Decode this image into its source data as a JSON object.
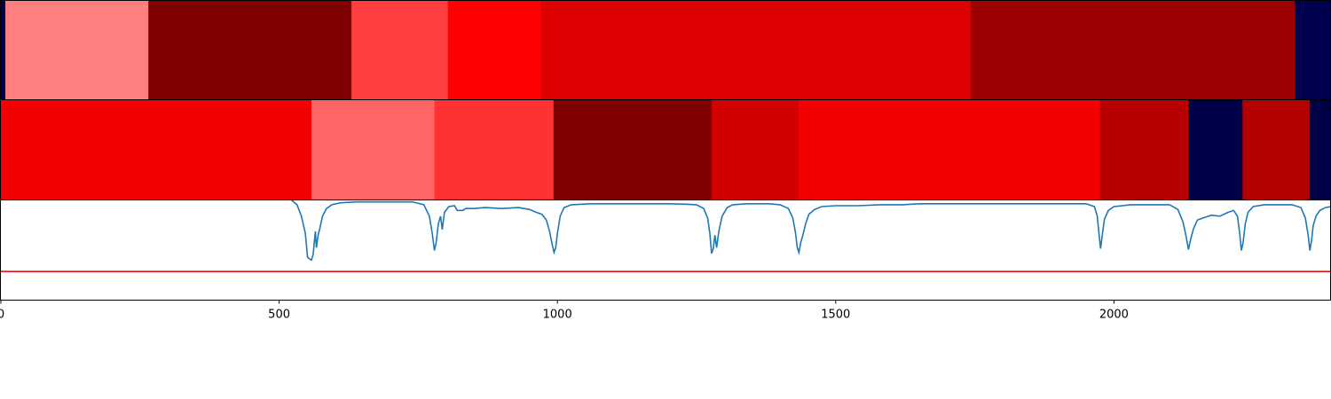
{
  "chart_data": [
    {
      "type": "heatmap",
      "xlim": [
        0,
        2390
      ],
      "segments": [
        {
          "start": 0,
          "end": 8,
          "color": "#000050"
        },
        {
          "start": 8,
          "end": 265,
          "color": "#ff7f7f"
        },
        {
          "start": 265,
          "end": 630,
          "color": "#7f0000"
        },
        {
          "start": 630,
          "end": 803,
          "color": "#ff3f3f"
        },
        {
          "start": 803,
          "end": 970,
          "color": "#ff0000"
        },
        {
          "start": 970,
          "end": 1743,
          "color": "#dc0000"
        },
        {
          "start": 1743,
          "end": 2325,
          "color": "#9c0000"
        },
        {
          "start": 2325,
          "end": 2390,
          "color": "#000050"
        }
      ]
    },
    {
      "type": "heatmap",
      "xlim": [
        0,
        2390
      ],
      "segments": [
        {
          "start": 0,
          "end": 558,
          "color": "#f50000"
        },
        {
          "start": 558,
          "end": 779,
          "color": "#ff6565"
        },
        {
          "start": 779,
          "end": 993,
          "color": "#ff3131"
        },
        {
          "start": 993,
          "end": 1277,
          "color": "#7f0000"
        },
        {
          "start": 1277,
          "end": 1433,
          "color": "#d30000"
        },
        {
          "start": 1433,
          "end": 1975,
          "color": "#f40000"
        },
        {
          "start": 1975,
          "end": 2134,
          "color": "#b80000"
        },
        {
          "start": 2134,
          "end": 2231,
          "color": "#000048"
        },
        {
          "start": 2231,
          "end": 2352,
          "color": "#b50000"
        },
        {
          "start": 2352,
          "end": 2390,
          "color": "#000048"
        }
      ]
    },
    {
      "type": "line",
      "xlim": [
        0,
        2390
      ],
      "ylim": [
        -1.0,
        0.05
      ],
      "ticks": [
        0,
        500,
        1000,
        1500,
        2000
      ],
      "threshold": -0.7,
      "line_color": "#1f77b4",
      "threshold_color": "#ee1111",
      "points": [
        [
          0,
          0.1
        ],
        [
          470,
          0.1
        ],
        [
          505,
          0.1
        ],
        [
          520,
          0.06
        ],
        [
          532,
          0.0
        ],
        [
          540,
          -0.12
        ],
        [
          547,
          -0.3
        ],
        [
          551,
          -0.55
        ],
        [
          555,
          -0.57
        ],
        [
          558,
          -0.58
        ],
        [
          561,
          -0.52
        ],
        [
          563,
          -0.41
        ],
        [
          565,
          -0.28
        ],
        [
          567,
          -0.45
        ],
        [
          570,
          -0.32
        ],
        [
          573,
          -0.25
        ],
        [
          578,
          -0.12
        ],
        [
          585,
          -0.04
        ],
        [
          595,
          0.0
        ],
        [
          610,
          0.02
        ],
        [
          640,
          0.03
        ],
        [
          740,
          0.03
        ],
        [
          760,
          0.0
        ],
        [
          770,
          -0.12
        ],
        [
          775,
          -0.3
        ],
        [
          779,
          -0.48
        ],
        [
          782,
          -0.4
        ],
        [
          786,
          -0.2
        ],
        [
          790,
          -0.12
        ],
        [
          793,
          -0.26
        ],
        [
          797,
          -0.08
        ],
        [
          805,
          -0.02
        ],
        [
          815,
          -0.01
        ],
        [
          820,
          -0.06
        ],
        [
          830,
          -0.06
        ],
        [
          835,
          -0.04
        ],
        [
          850,
          -0.04
        ],
        [
          870,
          -0.03
        ],
        [
          900,
          -0.04
        ],
        [
          930,
          -0.03
        ],
        [
          950,
          -0.05
        ],
        [
          962,
          -0.08
        ],
        [
          972,
          -0.1
        ],
        [
          980,
          -0.16
        ],
        [
          986,
          -0.28
        ],
        [
          990,
          -0.4
        ],
        [
          994,
          -0.5
        ],
        [
          997,
          -0.45
        ],
        [
          1000,
          -0.3
        ],
        [
          1005,
          -0.12
        ],
        [
          1012,
          -0.03
        ],
        [
          1025,
          0.0
        ],
        [
          1060,
          0.01
        ],
        [
          1120,
          0.01
        ],
        [
          1200,
          0.01
        ],
        [
          1230,
          0.005
        ],
        [
          1250,
          0.0
        ],
        [
          1263,
          -0.04
        ],
        [
          1270,
          -0.14
        ],
        [
          1274,
          -0.3
        ],
        [
          1277,
          -0.51
        ],
        [
          1280,
          -0.46
        ],
        [
          1283,
          -0.32
        ],
        [
          1286,
          -0.45
        ],
        [
          1290,
          -0.28
        ],
        [
          1296,
          -0.12
        ],
        [
          1305,
          -0.03
        ],
        [
          1315,
          0.0
        ],
        [
          1340,
          0.01
        ],
        [
          1380,
          0.01
        ],
        [
          1400,
          0.0
        ],
        [
          1415,
          -0.04
        ],
        [
          1423,
          -0.14
        ],
        [
          1428,
          -0.3
        ],
        [
          1431,
          -0.45
        ],
        [
          1434,
          -0.5
        ],
        [
          1437,
          -0.4
        ],
        [
          1441,
          -0.32
        ],
        [
          1446,
          -0.2
        ],
        [
          1452,
          -0.1
        ],
        [
          1462,
          -0.05
        ],
        [
          1475,
          -0.02
        ],
        [
          1500,
          -0.01
        ],
        [
          1540,
          -0.01
        ],
        [
          1580,
          0.0
        ],
        [
          1620,
          0.0
        ],
        [
          1650,
          0.01
        ],
        [
          1800,
          0.01
        ],
        [
          1950,
          0.01
        ],
        [
          1965,
          -0.02
        ],
        [
          1970,
          -0.12
        ],
        [
          1973,
          -0.3
        ],
        [
          1976,
          -0.46
        ],
        [
          1979,
          -0.32
        ],
        [
          1983,
          -0.15
        ],
        [
          1990,
          -0.06
        ],
        [
          2000,
          -0.02
        ],
        [
          2015,
          -0.01
        ],
        [
          2030,
          0.0
        ],
        [
          2060,
          0.0
        ],
        [
          2100,
          0.0
        ],
        [
          2115,
          -0.05
        ],
        [
          2124,
          -0.18
        ],
        [
          2130,
          -0.34
        ],
        [
          2134,
          -0.47
        ],
        [
          2138,
          -0.36
        ],
        [
          2143,
          -0.25
        ],
        [
          2150,
          -0.16
        ],
        [
          2160,
          -0.14
        ],
        [
          2175,
          -0.11
        ],
        [
          2190,
          -0.12
        ],
        [
          2205,
          -0.08
        ],
        [
          2215,
          -0.06
        ],
        [
          2222,
          -0.12
        ],
        [
          2226,
          -0.3
        ],
        [
          2229,
          -0.48
        ],
        [
          2232,
          -0.4
        ],
        [
          2236,
          -0.2
        ],
        [
          2241,
          -0.08
        ],
        [
          2250,
          -0.02
        ],
        [
          2270,
          0.0
        ],
        [
          2320,
          0.0
        ],
        [
          2336,
          -0.03
        ],
        [
          2344,
          -0.14
        ],
        [
          2349,
          -0.32
        ],
        [
          2352,
          -0.48
        ],
        [
          2355,
          -0.38
        ],
        [
          2358,
          -0.22
        ],
        [
          2363,
          -0.12
        ],
        [
          2370,
          -0.06
        ],
        [
          2380,
          -0.03
        ],
        [
          2390,
          -0.02
        ]
      ]
    }
  ]
}
